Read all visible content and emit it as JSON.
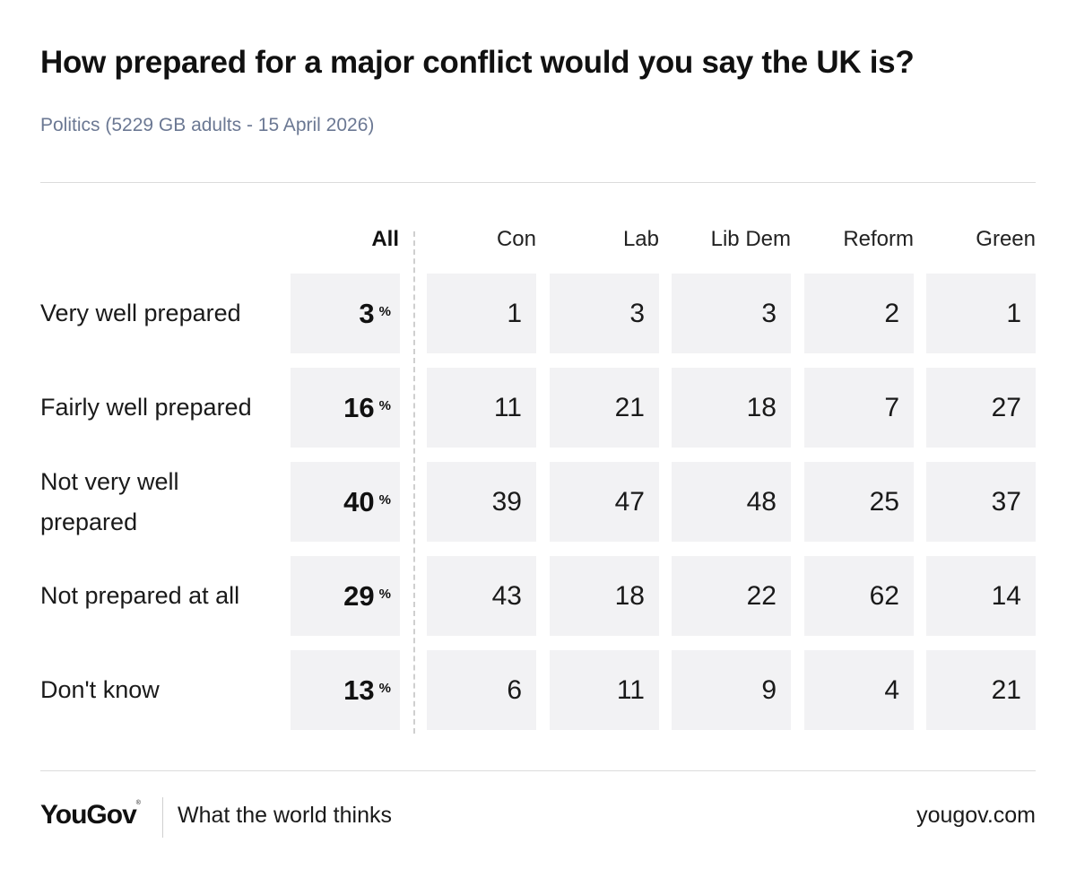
{
  "header": {
    "title": "How prepared for a major conflict would you say the UK is?",
    "subtitle": "Politics (5229 GB adults - 15 April 2026)"
  },
  "chart_data": {
    "type": "table",
    "title": "How prepared for a major conflict would you say the UK is?",
    "unit_symbol": "%",
    "columns": [
      "All",
      "Con",
      "Lab",
      "Lib Dem",
      "Reform",
      "Green"
    ],
    "rows": [
      {
        "label": "Very well prepared",
        "values": [
          3,
          1,
          3,
          3,
          2,
          1
        ]
      },
      {
        "label": "Fairly well prepared",
        "values": [
          16,
          11,
          21,
          18,
          7,
          27
        ]
      },
      {
        "label": "Not very well prepared",
        "values": [
          40,
          39,
          47,
          48,
          25,
          37
        ]
      },
      {
        "label": "Not prepared at all",
        "values": [
          29,
          43,
          18,
          22,
          62,
          14
        ]
      },
      {
        "label": "Don't know",
        "values": [
          13,
          6,
          11,
          9,
          4,
          21
        ]
      }
    ]
  },
  "footer": {
    "brand": "YouGov",
    "tagline": "What the world thinks",
    "url": "yougov.com"
  },
  "colors": {
    "cell_background": "#f2f2f4",
    "subtitle": "#6b7893",
    "rule": "#dcdcdc"
  }
}
